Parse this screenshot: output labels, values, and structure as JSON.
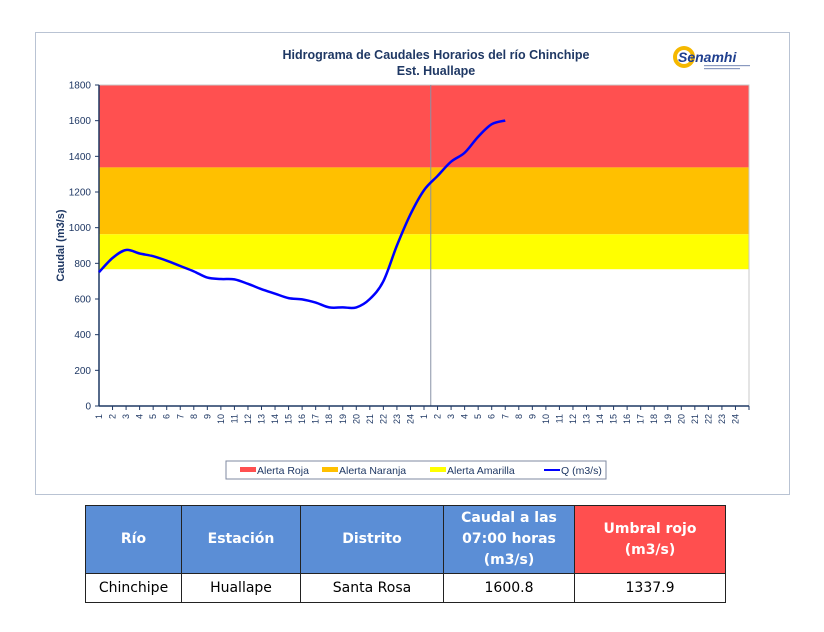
{
  "chart_data": {
    "type": "line",
    "title": "Hidrograma de Caudales Horarios del río Chinchipe",
    "subtitle": "Est. Huallape",
    "ylabel": "Caudal  (m3/s)",
    "xlabel": "",
    "ylim": [
      0,
      1800
    ],
    "yticks": [
      0,
      200,
      400,
      600,
      800,
      1000,
      1200,
      1400,
      1600,
      1800
    ],
    "xtick_labels": [
      "1",
      "2",
      "3",
      "4",
      "5",
      "6",
      "7",
      "8",
      "9",
      "10",
      "11",
      "12",
      "13",
      "14",
      "15",
      "16",
      "17",
      "18",
      "19",
      "20",
      "21",
      "22",
      "23",
      "24",
      "1",
      "2",
      "3",
      "4",
      "5",
      "6",
      "7",
      "8",
      "9",
      "10",
      "11",
      "12",
      "13",
      "14",
      "15",
      "16",
      "17",
      "18",
      "19",
      "20",
      "21",
      "22",
      "23",
      "24"
    ],
    "bands": [
      {
        "name": "Alerta Roja",
        "from": 1337.9,
        "to": 1800,
        "color": "#ff5050"
      },
      {
        "name": "Alerta Naranja",
        "from": 963,
        "to": 1337.9,
        "color": "#ffc000"
      },
      {
        "name": "Alerta Amarilla",
        "from": 767,
        "to": 963,
        "color": "#ffff00"
      }
    ],
    "series": [
      {
        "name": "Q (m3/s)",
        "color": "#0000ff",
        "values": [
          750,
          830,
          875,
          855,
          840,
          815,
          785,
          755,
          720,
          712,
          710,
          685,
          655,
          630,
          605,
          598,
          580,
          553,
          553,
          553,
          600,
          700,
          900,
          1075,
          1210,
          1290,
          1370,
          1420,
          1510,
          1580,
          1600.8
        ]
      }
    ],
    "day_divider_after_index": 24,
    "legend_position": "bottom"
  },
  "logo": {
    "text": "Senamhi"
  },
  "table": {
    "headers": [
      "Río",
      "Estación",
      "Distrito",
      "Caudal a las 07:00 horas (m3/s)",
      "Umbral rojo (m3/s)"
    ],
    "row": [
      "Chinchipe",
      "Huallape",
      "Santa Rosa",
      "1600.8",
      "1337.9"
    ]
  }
}
